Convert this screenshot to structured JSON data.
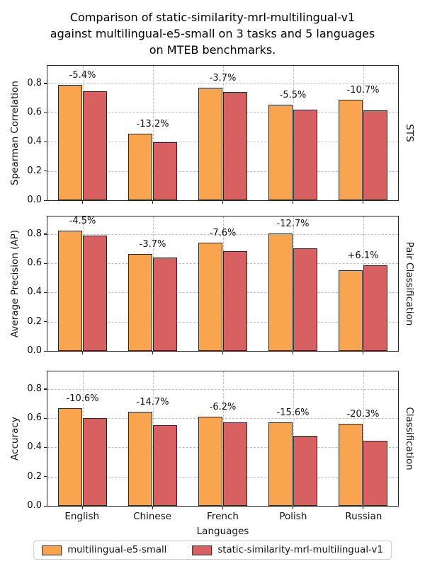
{
  "title": "Comparison of static-similarity-mrl-multilingual-v1\nagainst multilingual-e5-small on 3 tasks and 5 languages\non MTEB benchmarks.",
  "xlabel": "Languages",
  "categories": [
    "English",
    "Chinese",
    "French",
    "Polish",
    "Russian"
  ],
  "legend": [
    {
      "label": "multilingual-e5-small",
      "color": "#F9A44F"
    },
    {
      "label": "static-similarity-mrl-multilingual-v1",
      "color": "#D86060"
    }
  ],
  "colors": {
    "series_a": "#F9A44F",
    "series_b": "#D86060",
    "bar_edge": "#262626",
    "grid": "#bdbdbd",
    "spine": "#262626"
  },
  "chart_data": [
    {
      "type": "bar",
      "task_label": "STS",
      "ylabel": "Spearman Correlation",
      "ylim": [
        0,
        0.92
      ],
      "yticks": [
        0,
        0.2,
        0.4,
        0.6,
        0.8
      ],
      "grid": true,
      "legend_position": "bottom",
      "categories": [
        "English",
        "Chinese",
        "French",
        "Polish",
        "Russian"
      ],
      "series": [
        {
          "name": "multilingual-e5-small",
          "values": [
            0.79,
            0.455,
            0.77,
            0.655,
            0.69
          ]
        },
        {
          "name": "static-similarity-mrl-multilingual-v1",
          "values": [
            0.747,
            0.395,
            0.741,
            0.619,
            0.616
          ]
        }
      ],
      "annotations": [
        "-5.4%",
        "-13.2%",
        "-3.7%",
        "-5.5%",
        "-10.7%"
      ]
    },
    {
      "type": "bar",
      "task_label": "Pair Classification",
      "ylabel": "Average Precision (AP)",
      "ylim": [
        0,
        0.92
      ],
      "yticks": [
        0,
        0.2,
        0.4,
        0.6,
        0.8
      ],
      "grid": true,
      "categories": [
        "English",
        "Chinese",
        "French",
        "Polish",
        "Russian"
      ],
      "series": [
        {
          "name": "multilingual-e5-small",
          "values": [
            0.825,
            0.665,
            0.74,
            0.805,
            0.55
          ]
        },
        {
          "name": "static-similarity-mrl-multilingual-v1",
          "values": [
            0.788,
            0.64,
            0.684,
            0.703,
            0.584
          ]
        }
      ],
      "annotations": [
        "-4.5%",
        "-3.7%",
        "-7.6%",
        "-12.7%",
        "+6.1%"
      ]
    },
    {
      "type": "bar",
      "task_label": "Classification",
      "ylabel": "Accuracy",
      "ylim": [
        0,
        0.92
      ],
      "yticks": [
        0,
        0.2,
        0.4,
        0.6,
        0.8
      ],
      "grid": true,
      "categories": [
        "English",
        "Chinese",
        "French",
        "Polish",
        "Russian"
      ],
      "series": [
        {
          "name": "multilingual-e5-small",
          "values": [
            0.67,
            0.645,
            0.61,
            0.57,
            0.56
          ]
        },
        {
          "name": "static-similarity-mrl-multilingual-v1",
          "values": [
            0.599,
            0.55,
            0.572,
            0.481,
            0.446
          ]
        }
      ],
      "annotations": [
        "-10.6%",
        "-14.7%",
        "-6.2%",
        "-15.6%",
        "-20.3%"
      ]
    }
  ]
}
